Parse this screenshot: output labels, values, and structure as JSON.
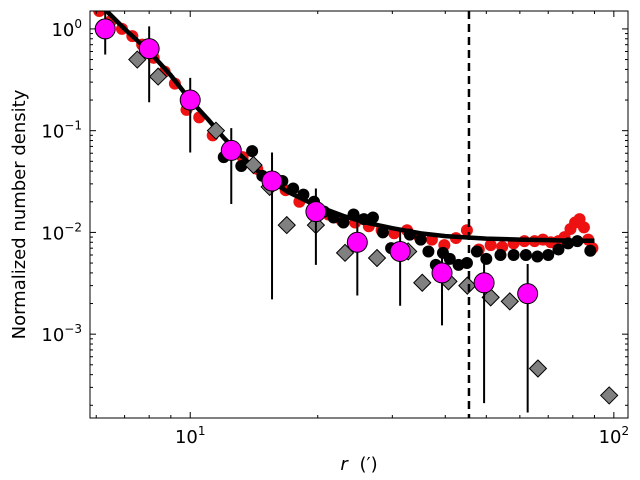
{
  "chart_data": {
    "type": "scatter",
    "title": "",
    "xlabel": "r (′)",
    "xlabel_var": "r",
    "xlabel_unit": "(′)",
    "ylabel": "Normalized number density",
    "xscale": "log",
    "yscale": "log",
    "xlim": [
      5.8,
      108
    ],
    "ylim": [
      0.00015,
      1.5
    ],
    "x_ticks": [
      {
        "value": 10,
        "base": "10",
        "exp": "1"
      },
      {
        "value": 100,
        "base": "10",
        "exp": "2"
      }
    ],
    "y_ticks": [
      {
        "value": 0.001,
        "base": "10",
        "exp": "−3"
      },
      {
        "value": 0.01,
        "base": "10",
        "exp": "−2"
      },
      {
        "value": 0.1,
        "base": "10",
        "exp": "−1"
      },
      {
        "value": 1,
        "base": "10",
        "exp": "0"
      }
    ],
    "vline": {
      "x": 45.5,
      "style": "dashed"
    },
    "series": [
      {
        "name": "red",
        "color": "#ee1111",
        "marker": "circle",
        "points": [
          [
            6.1,
            1.5
          ],
          [
            6.5,
            1.2
          ],
          [
            6.9,
            1.0
          ],
          [
            7.3,
            0.85
          ],
          [
            7.7,
            0.7
          ],
          [
            8.2,
            0.52
          ],
          [
            8.7,
            0.38
          ],
          [
            9.2,
            0.29
          ],
          [
            9.8,
            0.16
          ],
          [
            10.5,
            0.135
          ],
          [
            11.3,
            0.09
          ],
          [
            12.3,
            0.065
          ],
          [
            13.3,
            0.055
          ],
          [
            14.4,
            0.042
          ],
          [
            15.6,
            0.035
          ],
          [
            16.8,
            0.026
          ],
          [
            18.1,
            0.02
          ],
          [
            19.6,
            0.017
          ],
          [
            21.2,
            0.015
          ],
          [
            22.8,
            0.013
          ],
          [
            24.5,
            0.0125
          ],
          [
            26.4,
            0.0115
          ],
          [
            28.3,
            0.0105
          ],
          [
            30.3,
            0.0098
          ],
          [
            32.5,
            0.0105
          ],
          [
            34.8,
            0.009
          ],
          [
            37.2,
            0.0085
          ],
          [
            39.8,
            0.0075
          ],
          [
            42.4,
            0.0088
          ],
          [
            45.0,
            0.0105
          ],
          [
            48.0,
            0.0068
          ],
          [
            51.2,
            0.0075
          ],
          [
            54.5,
            0.0072
          ],
          [
            58.0,
            0.0078
          ],
          [
            61.5,
            0.0082
          ],
          [
            65.0,
            0.0082
          ],
          [
            68.0,
            0.0085
          ],
          [
            71.0,
            0.008
          ],
          [
            74.0,
            0.0082
          ],
          [
            76.5,
            0.009
          ],
          [
            79.0,
            0.0108
          ],
          [
            81.0,
            0.0125
          ],
          [
            83.0,
            0.0135
          ],
          [
            85.0,
            0.0112
          ],
          [
            87.0,
            0.0085
          ],
          [
            89.0,
            0.007
          ]
        ]
      },
      {
        "name": "black",
        "color": "#000000",
        "marker": "circle",
        "points": [
          [
            12.0,
            0.055
          ],
          [
            12.6,
            0.06
          ],
          [
            13.2,
            0.045
          ],
          [
            14.0,
            0.063
          ],
          [
            14.8,
            0.036
          ],
          [
            15.6,
            0.03
          ],
          [
            16.5,
            0.032
          ],
          [
            17.5,
            0.027
          ],
          [
            18.5,
            0.0235
          ],
          [
            19.6,
            0.02
          ],
          [
            20.7,
            0.016
          ],
          [
            21.8,
            0.014
          ],
          [
            23.0,
            0.0125
          ],
          [
            24.3,
            0.015
          ],
          [
            25.7,
            0.0135
          ],
          [
            27.0,
            0.014
          ],
          [
            28.5,
            0.01
          ],
          [
            29.8,
            0.007
          ],
          [
            31.5,
            0.0068
          ],
          [
            33.0,
            0.0095
          ],
          [
            35.0,
            0.0085
          ],
          [
            36.5,
            0.0065
          ],
          [
            38.0,
            0.0048
          ],
          [
            39.5,
            0.0063
          ],
          [
            41.0,
            0.0055
          ],
          [
            43.0,
            0.0048
          ],
          [
            45.0,
            0.005
          ],
          [
            47.5,
            0.0065
          ],
          [
            50.0,
            0.0055
          ],
          [
            54.0,
            0.006
          ],
          [
            58.0,
            0.006
          ],
          [
            62.0,
            0.006
          ],
          [
            66.0,
            0.0058
          ],
          [
            70.0,
            0.006
          ],
          [
            74.0,
            0.0068
          ],
          [
            78.0,
            0.0078
          ],
          [
            82.0,
            0.0082
          ],
          [
            88.0,
            0.0066
          ]
        ]
      },
      {
        "name": "gray",
        "color": "#808080",
        "marker": "diamond",
        "points": [
          [
            7.5,
            0.5
          ],
          [
            8.4,
            0.34
          ],
          [
            11.5,
            0.1
          ],
          [
            14.1,
            0.046
          ],
          [
            15.4,
            0.028
          ],
          [
            16.9,
            0.0118
          ],
          [
            19.8,
            0.0118
          ],
          [
            23.2,
            0.0063
          ],
          [
            27.6,
            0.0056
          ],
          [
            32.7,
            0.0065
          ],
          [
            35.3,
            0.0032
          ],
          [
            40.7,
            0.0033
          ],
          [
            45.1,
            0.003
          ],
          [
            51.2,
            0.0023
          ],
          [
            56.8,
            0.0021
          ],
          [
            66.2,
            0.00046
          ],
          [
            97.5,
            0.00025
          ]
        ]
      },
      {
        "name": "magenta",
        "color": "#ff00ff",
        "marker": "circle-large",
        "points": [
          {
            "x": 6.3,
            "y": 1.0,
            "lo": 0.56,
            "hi": 1.5
          },
          {
            "x": 8.0,
            "y": 0.64,
            "lo": 0.19,
            "hi": 1.06
          },
          {
            "x": 10.0,
            "y": 0.2,
            "lo": 0.061,
            "hi": 0.33
          },
          {
            "x": 12.5,
            "y": 0.064,
            "lo": 0.019,
            "hi": 0.106
          },
          {
            "x": 15.6,
            "y": 0.032,
            "lo": 0.0022,
            "hi": 0.061
          },
          {
            "x": 19.8,
            "y": 0.016,
            "lo": 0.0048,
            "hi": 0.027
          },
          {
            "x": 24.8,
            "y": 0.008,
            "lo": 0.0024,
            "hi": 0.0135
          },
          {
            "x": 31.3,
            "y": 0.0065,
            "lo": 0.0019,
            "hi": 0.0109
          },
          {
            "x": 39.3,
            "y": 0.004,
            "lo": 0.00122,
            "hi": 0.0068
          },
          {
            "x": 49.4,
            "y": 0.0032,
            "lo": 0.00021,
            "hi": 0.0062
          },
          {
            "x": 62.6,
            "y": 0.0025,
            "lo": 0.00017,
            "hi": 0.0049
          }
        ]
      }
    ],
    "fit_line": {
      "name": "fit",
      "color": "#000000",
      "points": [
        [
          6.3,
          1.55
        ],
        [
          7.0,
          1.0
        ],
        [
          8.0,
          0.6
        ],
        [
          9.0,
          0.35
        ],
        [
          10.0,
          0.2
        ],
        [
          11.0,
          0.13
        ],
        [
          12.0,
          0.085
        ],
        [
          13.0,
          0.06
        ],
        [
          14.0,
          0.045
        ],
        [
          15.0,
          0.035
        ],
        [
          17.0,
          0.025
        ],
        [
          20.0,
          0.018
        ],
        [
          23.0,
          0.0145
        ],
        [
          26.0,
          0.0125
        ],
        [
          30.0,
          0.011
        ],
        [
          35.0,
          0.0098
        ],
        [
          40.0,
          0.0092
        ],
        [
          50.0,
          0.0087
        ],
        [
          60.0,
          0.0085
        ],
        [
          70.0,
          0.0084
        ],
        [
          80.0,
          0.0083
        ],
        [
          90.0,
          0.0083
        ]
      ]
    }
  }
}
